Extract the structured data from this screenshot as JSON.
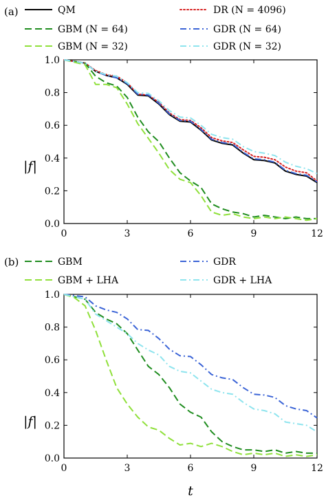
{
  "colors": {
    "QM": "#000000",
    "DR": "#d62020",
    "GBM_dark": "#1e8c1e",
    "GBM_light": "#8fe03a",
    "GDR_dark": "#3a63d6",
    "GDR_light": "#8ee4ee"
  },
  "xlabel": "t",
  "chart_data": [
    {
      "type": "line",
      "panel_label": "(a)",
      "ylabel": "|f|",
      "xlim": [
        0,
        12
      ],
      "ylim": [
        0,
        1
      ],
      "xticks": [
        "0",
        "3",
        "6",
        "9",
        "12"
      ],
      "yticks": [
        "0.0",
        "0.2",
        "0.4",
        "0.6",
        "0.8",
        "1.0"
      ],
      "grid": false,
      "legend_position": "top",
      "series": [
        {
          "name": "QM",
          "style": "solid",
          "color": "#000000",
          "x": [
            0,
            1,
            1.5,
            2,
            2.5,
            3,
            3.5,
            4,
            4.5,
            5,
            5.5,
            6,
            6.5,
            7,
            7.5,
            8,
            8.5,
            9,
            9.5,
            10,
            10.5,
            11,
            11.5,
            12
          ],
          "y": [
            1.0,
            0.98,
            0.93,
            0.905,
            0.89,
            0.85,
            0.785,
            0.78,
            0.73,
            0.665,
            0.625,
            0.62,
            0.57,
            0.51,
            0.49,
            0.48,
            0.43,
            0.39,
            0.385,
            0.37,
            0.32,
            0.3,
            0.29,
            0.25
          ]
        },
        {
          "name": "DR (N = 4096)",
          "style": "dotted",
          "color": "#d62020",
          "x": [
            0,
            1,
            1.5,
            2,
            2.5,
            3,
            3.5,
            4,
            4.5,
            5,
            5.5,
            6,
            6.5,
            7,
            7.5,
            8,
            8.5,
            9,
            9.5,
            10,
            10.5,
            11,
            11.5,
            12
          ],
          "y": [
            1.0,
            0.98,
            0.935,
            0.91,
            0.9,
            0.86,
            0.79,
            0.785,
            0.74,
            0.675,
            0.635,
            0.63,
            0.585,
            0.525,
            0.505,
            0.495,
            0.45,
            0.41,
            0.405,
            0.39,
            0.345,
            0.32,
            0.31,
            0.26
          ]
        },
        {
          "name": "GBM (N = 64)",
          "style": "dashed",
          "color": "#1e8c1e",
          "x": [
            0,
            1,
            1.5,
            2,
            2.5,
            3,
            3.5,
            4,
            4.5,
            5,
            5.5,
            6,
            6.5,
            7,
            7.5,
            8,
            8.5,
            9,
            9.5,
            10,
            10.5,
            11,
            11.5,
            12
          ],
          "y": [
            1.0,
            0.98,
            0.9,
            0.86,
            0.84,
            0.77,
            0.65,
            0.56,
            0.5,
            0.4,
            0.31,
            0.26,
            0.22,
            0.12,
            0.09,
            0.07,
            0.06,
            0.04,
            0.05,
            0.04,
            0.03,
            0.04,
            0.03,
            0.03
          ]
        },
        {
          "name": "GBM (N = 32)",
          "style": "dashed",
          "color": "#8fe03a",
          "x": [
            0,
            1,
            1.5,
            2,
            2.5,
            3,
            3.5,
            4,
            4.5,
            5,
            5.5,
            6,
            6.5,
            7,
            7.5,
            8,
            8.5,
            9,
            9.5,
            10,
            10.5,
            11,
            11.5,
            12
          ],
          "y": [
            1.0,
            0.97,
            0.85,
            0.85,
            0.83,
            0.73,
            0.61,
            0.52,
            0.43,
            0.33,
            0.27,
            0.25,
            0.17,
            0.07,
            0.05,
            0.06,
            0.04,
            0.03,
            0.04,
            0.03,
            0.04,
            0.03,
            0.02,
            0.03
          ]
        },
        {
          "name": "GDR (N = 64)",
          "style": "dashdot",
          "color": "#3a63d6",
          "x": [
            0,
            1,
            1.5,
            2,
            2.5,
            3,
            3.5,
            4,
            4.5,
            5,
            5.5,
            6,
            6.5,
            7,
            7.5,
            8,
            8.5,
            9,
            9.5,
            10,
            10.5,
            11,
            11.5,
            12
          ],
          "y": [
            1.0,
            0.98,
            0.93,
            0.905,
            0.89,
            0.855,
            0.79,
            0.785,
            0.735,
            0.67,
            0.63,
            0.625,
            0.575,
            0.515,
            0.495,
            0.485,
            0.435,
            0.395,
            0.39,
            0.375,
            0.325,
            0.305,
            0.295,
            0.255
          ]
        },
        {
          "name": "GDR (N = 32)",
          "style": "dashdot",
          "color": "#8ee4ee",
          "x": [
            0,
            1,
            1.5,
            2,
            2.5,
            3,
            3.5,
            4,
            4.5,
            5,
            5.5,
            6,
            6.5,
            7,
            7.5,
            8,
            8.5,
            9,
            9.5,
            10,
            10.5,
            11,
            11.5,
            12
          ],
          "y": [
            1.0,
            0.98,
            0.93,
            0.91,
            0.9,
            0.86,
            0.8,
            0.795,
            0.75,
            0.69,
            0.65,
            0.645,
            0.6,
            0.545,
            0.525,
            0.515,
            0.47,
            0.44,
            0.43,
            0.415,
            0.375,
            0.35,
            0.335,
            0.305
          ]
        }
      ]
    },
    {
      "type": "line",
      "panel_label": "(b)",
      "ylabel": "|f|",
      "xlabel": "t",
      "xlim": [
        0,
        12
      ],
      "ylim": [
        0,
        1
      ],
      "xticks": [
        "0",
        "3",
        "6",
        "9",
        "12"
      ],
      "yticks": [
        "0.0",
        "0.2",
        "0.4",
        "0.6",
        "0.8",
        "1.0"
      ],
      "grid": false,
      "legend_position": "top",
      "series": [
        {
          "name": "GBM",
          "style": "dashed",
          "color": "#1e8c1e",
          "x": [
            0,
            1,
            1.5,
            2,
            2.5,
            3,
            3.5,
            4,
            4.5,
            5,
            5.5,
            6,
            6.5,
            7,
            7.5,
            8,
            8.5,
            9,
            9.5,
            10,
            10.5,
            11,
            11.5,
            12
          ],
          "y": [
            1.0,
            0.97,
            0.89,
            0.85,
            0.82,
            0.76,
            0.66,
            0.56,
            0.51,
            0.43,
            0.33,
            0.28,
            0.25,
            0.16,
            0.1,
            0.07,
            0.05,
            0.05,
            0.04,
            0.05,
            0.03,
            0.04,
            0.03,
            0.03
          ]
        },
        {
          "name": "GBM + LHA",
          "style": "dashed",
          "color": "#8fe03a",
          "x": [
            0,
            0.5,
            1,
            1.5,
            2,
            2.5,
            3,
            3.5,
            4,
            4.5,
            5,
            5.5,
            6,
            6.5,
            7,
            7.5,
            8,
            8.5,
            9,
            9.5,
            10,
            10.5,
            11,
            11.5,
            12
          ],
          "y": [
            1.0,
            0.98,
            0.93,
            0.78,
            0.6,
            0.43,
            0.33,
            0.25,
            0.19,
            0.17,
            0.12,
            0.08,
            0.09,
            0.07,
            0.09,
            0.07,
            0.04,
            0.02,
            0.03,
            0.02,
            0.03,
            0.01,
            0.02,
            0.01,
            0.02
          ]
        },
        {
          "name": "GDR",
          "style": "dashdot",
          "color": "#3a63d6",
          "x": [
            0,
            1,
            1.5,
            2,
            2.5,
            3,
            3.5,
            4,
            4.5,
            5,
            5.5,
            6,
            6.5,
            7,
            7.5,
            8,
            8.5,
            9,
            9.5,
            10,
            10.5,
            11,
            11.5,
            12
          ],
          "y": [
            1.0,
            0.985,
            0.93,
            0.905,
            0.89,
            0.85,
            0.785,
            0.78,
            0.73,
            0.665,
            0.625,
            0.62,
            0.57,
            0.51,
            0.49,
            0.48,
            0.43,
            0.39,
            0.385,
            0.37,
            0.32,
            0.3,
            0.29,
            0.245
          ]
        },
        {
          "name": "GDR + LHA",
          "style": "dashdot",
          "color": "#8ee4ee",
          "x": [
            0,
            1,
            1.5,
            2,
            2.5,
            3,
            3.5,
            4,
            4.5,
            5,
            5.5,
            6,
            6.5,
            7,
            7.5,
            8,
            8.5,
            9,
            9.5,
            10,
            10.5,
            11,
            11.5,
            12
          ],
          "y": [
            1.0,
            0.97,
            0.88,
            0.84,
            0.8,
            0.76,
            0.7,
            0.66,
            0.63,
            0.56,
            0.53,
            0.52,
            0.47,
            0.42,
            0.4,
            0.39,
            0.34,
            0.3,
            0.29,
            0.27,
            0.22,
            0.21,
            0.2,
            0.16
          ]
        }
      ]
    }
  ]
}
